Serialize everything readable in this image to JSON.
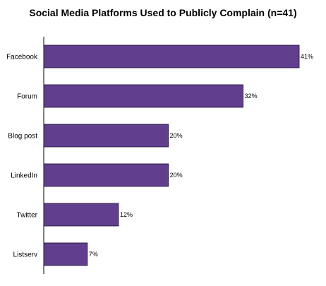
{
  "chart_data": {
    "type": "bar",
    "orientation": "horizontal",
    "title": "Social Media Platforms Used to Publicly Complain (n=41)",
    "categories": [
      "Facebook",
      "Forum",
      "Blog post",
      "LinkedIn",
      "Twitter",
      "Listserv"
    ],
    "values": [
      41,
      32,
      20,
      20,
      12,
      7
    ],
    "value_labels": [
      "41%",
      "32%",
      "20%",
      "20%",
      "12%",
      "7%"
    ],
    "xlim": [
      0,
      41
    ],
    "xlabel": "",
    "ylabel": "",
    "grid": false,
    "legend": "none",
    "bar_color": "#613f8e",
    "bar_edge_color": "#1a1030"
  }
}
